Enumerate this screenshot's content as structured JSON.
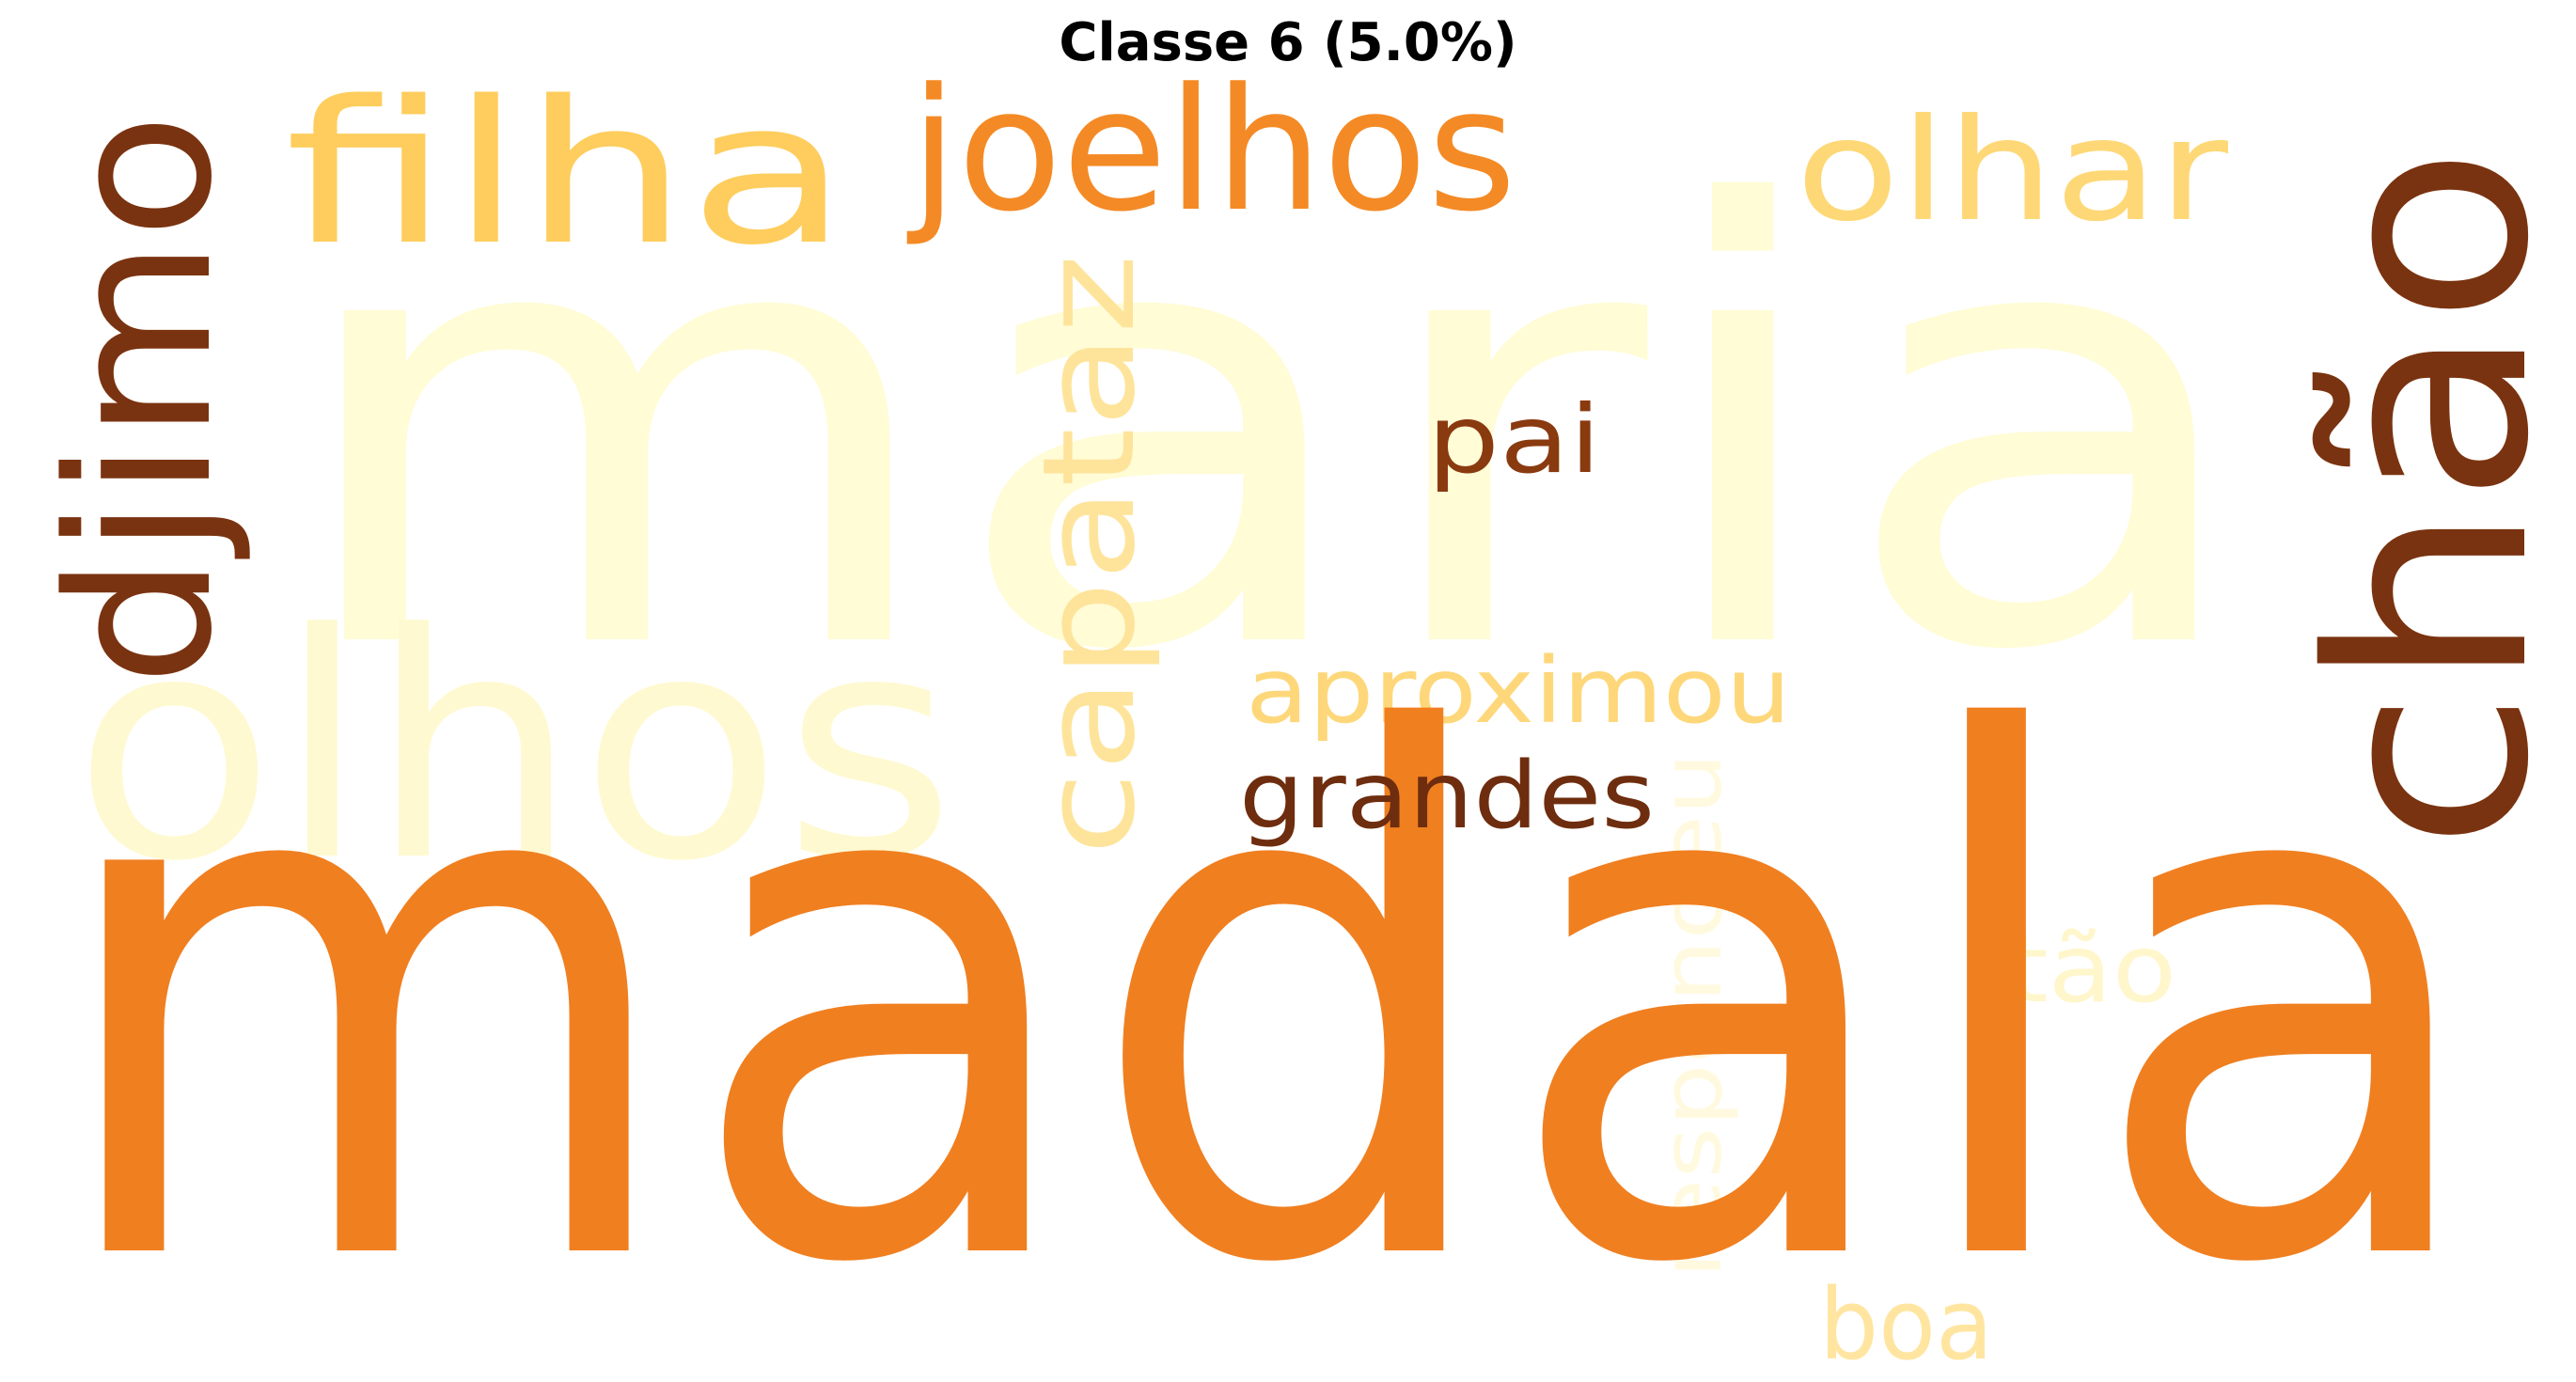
{
  "title": "Classe 6 (5.0%)",
  "words": [
    {
      "text": "maria",
      "color": "#fffcd6"
    },
    {
      "text": "madala",
      "color": "#f07f20"
    },
    {
      "text": "olhos",
      "color": "#fff9d1"
    },
    {
      "text": "chão",
      "color": "#7a3310"
    },
    {
      "text": "djimo",
      "color": "#7a3310"
    },
    {
      "text": "filha",
      "color": "#fecd5d"
    },
    {
      "text": "joelhos",
      "color": "#f48a25"
    },
    {
      "text": "olhar",
      "color": "#fed877"
    },
    {
      "text": "capataz",
      "color": "#fee49b"
    },
    {
      "text": "pai",
      "color": "#8a3a0f"
    },
    {
      "text": "aproximou",
      "color": "#fed77a"
    },
    {
      "text": "grandes",
      "color": "#6e2d0e"
    },
    {
      "text": "respondeu",
      "color": "#fffadf"
    },
    {
      "text": "tão",
      "color": "#fff6cb"
    },
    {
      "text": "boa",
      "color": "#ffe5a0"
    }
  ]
}
